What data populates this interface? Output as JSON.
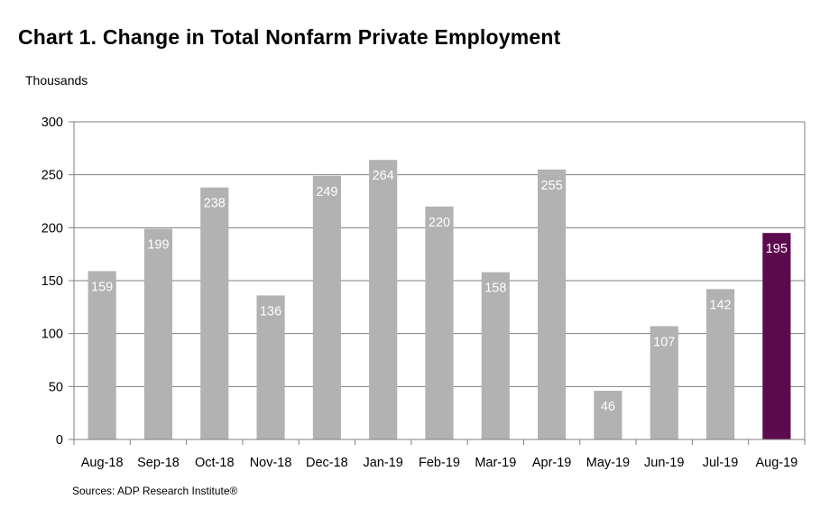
{
  "chart_data": {
    "type": "bar",
    "title": "Chart 1. Change in Total Nonfarm Private Employment",
    "ylabel": "Thousands",
    "xlabel": "",
    "source": "Sources: ADP Research Institute®",
    "categories": [
      "Aug-18",
      "Sep-18",
      "Oct-18",
      "Nov-18",
      "Dec-18",
      "Jan-19",
      "Feb-19",
      "Mar-19",
      "Apr-19",
      "May-19",
      "Jun-19",
      "Jul-19",
      "Aug-19"
    ],
    "values": [
      159,
      199,
      238,
      136,
      249,
      264,
      220,
      158,
      255,
      46,
      107,
      142,
      195
    ],
    "ylim": [
      0,
      300
    ],
    "yticks": [
      0,
      50,
      100,
      150,
      200,
      250,
      300
    ],
    "grid": true,
    "legend": "none",
    "colors": {
      "bar": "#b2b2b2",
      "highlight_bar": "#5c0a4e",
      "gridline": "#7f7f7f",
      "axis": "#7f7f7f"
    },
    "highlight_index": 12
  }
}
